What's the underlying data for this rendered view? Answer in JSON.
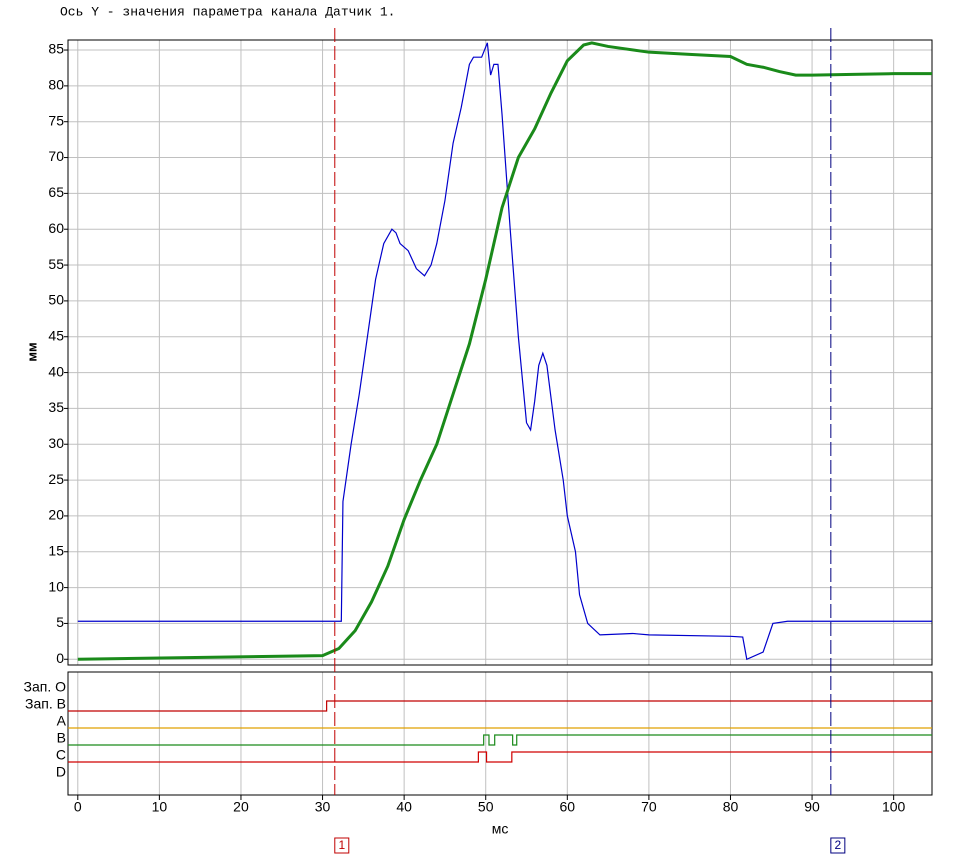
{
  "chart_data": {
    "type": "line",
    "title": "Ось Y - значения параметра канала Датчик 1.",
    "y_label": "мм",
    "x_label": "мс",
    "xlim": [
      -1.2,
      104.7
    ],
    "ylim": [
      -0.8,
      86.4
    ],
    "xticks": [
      0,
      10,
      20,
      30,
      40,
      50,
      60,
      70,
      80,
      90,
      100
    ],
    "yticks": [
      0,
      5,
      10,
      15,
      20,
      25,
      30,
      35,
      40,
      45,
      50,
      55,
      60,
      65,
      70,
      75,
      80,
      85
    ],
    "grid": true,
    "series": [
      {
        "color": "#0000cc",
        "x": [
          0,
          32.3,
          32.5,
          33.5,
          34.5,
          35.5,
          36.5,
          37.5,
          38.5,
          39,
          39.5,
          40.5,
          41.5,
          42.5,
          43.3,
          44,
          45,
          46,
          47,
          48,
          48.5,
          49.5,
          50.2,
          50.6,
          51,
          51.5,
          52,
          53,
          54,
          55,
          55.5,
          56,
          56.5,
          57,
          57.5,
          58.5,
          59.5,
          60,
          61,
          61.5,
          62.5,
          64,
          68,
          70,
          80,
          81.5,
          82,
          84,
          85.2,
          87,
          104.7
        ],
        "values": [
          5.3,
          5.3,
          22,
          30,
          37,
          45,
          53,
          58,
          60,
          59.5,
          58,
          57,
          54.5,
          53.5,
          55,
          58,
          64,
          72,
          77,
          83,
          84,
          84,
          86,
          81.5,
          83,
          83,
          76,
          60,
          45,
          33,
          32,
          36,
          41,
          42.7,
          41,
          32,
          25,
          20,
          15,
          9,
          5,
          3.4,
          3.6,
          3.4,
          3.2,
          3.1,
          0,
          1,
          5,
          5.3,
          5.3
        ]
      },
      {
        "color": "#1a8a1a",
        "x": [
          0,
          30,
          32,
          34,
          36,
          38,
          40,
          42,
          44,
          46,
          48,
          50,
          52,
          54,
          56,
          58,
          60,
          62,
          63,
          65,
          70,
          75,
          80,
          82,
          84,
          86,
          88,
          90,
          95,
          100,
          104.7
        ],
        "values": [
          0,
          0.5,
          1.5,
          4,
          8,
          13,
          19.5,
          25,
          30,
          37,
          44,
          53,
          63,
          70,
          74,
          79,
          83.5,
          85.7,
          86,
          85.5,
          84.7,
          84.4,
          84.1,
          83,
          82.6,
          82,
          81.5,
          81.5,
          81.6,
          81.7,
          81.7
        ]
      }
    ],
    "cursors": [
      {
        "label": "1",
        "value": 31.5,
        "color": "#c00000"
      },
      {
        "label": "2",
        "value": 92.3,
        "color": "#000080"
      }
    ],
    "digital": {
      "channels": [
        {
          "label": "Зап. O"
        },
        {
          "label": "Зап. B",
          "color": "#c00000",
          "x": [
            -1.2,
            30.5
          ],
          "values": [
            0,
            1
          ]
        },
        {
          "label": "A",
          "color": "#e0a000",
          "x": [
            -1.2
          ],
          "values": [
            0
          ]
        },
        {
          "label": "B",
          "color": "#1a8a1a",
          "x": [
            -1.2,
            49.75,
            50.4,
            51.1,
            53.3,
            53.8
          ],
          "values": [
            0,
            1,
            0,
            1,
            0,
            1
          ]
        },
        {
          "label": "C",
          "color": "#d00000",
          "x": [
            -1.2,
            49.1,
            50.1,
            51.5,
            53.2
          ],
          "values": [
            0,
            1,
            0,
            0,
            1
          ]
        },
        {
          "label": "D"
        }
      ]
    }
  }
}
